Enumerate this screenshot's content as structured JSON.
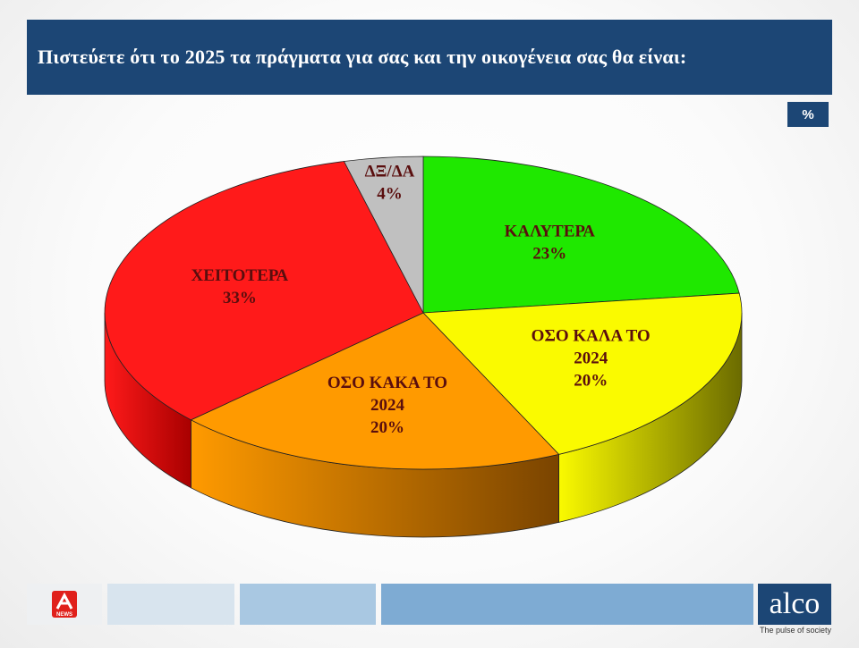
{
  "header": {
    "title": "Πιστεύετε ότι το 2025 τα πράγματα για σας και την οικογένεια σας θα είναι:"
  },
  "unit_badge": "%",
  "chart_data": {
    "type": "pie",
    "title": "Πιστεύετε ότι το 2025 τα πράγματα για σας και την οικογένεια σας θα είναι:",
    "unit": "%",
    "slices": [
      {
        "label_lines": [
          "ΚΑΛΥΤΕΡΑ"
        ],
        "value": 23,
        "value_text": "23%",
        "color": "#1fe800",
        "side_color": "#0f6d00"
      },
      {
        "label_lines": [
          "ΟΣΟ ΚΑΛΑ ΤΟ",
          "2024"
        ],
        "value": 20,
        "value_text": "20%",
        "color": "#fafa00",
        "side_color": "#6b6b00"
      },
      {
        "label_lines": [
          "ΟΣΟ ΚΑΚΑ ΤΟ",
          "2024"
        ],
        "value": 20,
        "value_text": "20%",
        "color": "#ff9a00",
        "side_color": "#7a4400"
      },
      {
        "label_lines": [
          "ΧΕΙΤΟΤΕΡΑ"
        ],
        "value": 33,
        "value_text": "33%",
        "color": "#ff1a1a",
        "side_color": "#a80000"
      },
      {
        "label_lines": [
          "ΔΞ/ΔΑ"
        ],
        "value": 4,
        "value_text": "4%",
        "color": "#c0c0c0",
        "side_color": "#7a7a7a"
      }
    ]
  },
  "footer": {
    "news_logo_icon": "alpha-news-logo",
    "news_logo_text": "NEWS",
    "brand": "alco",
    "tagline": "The pulse of society"
  }
}
